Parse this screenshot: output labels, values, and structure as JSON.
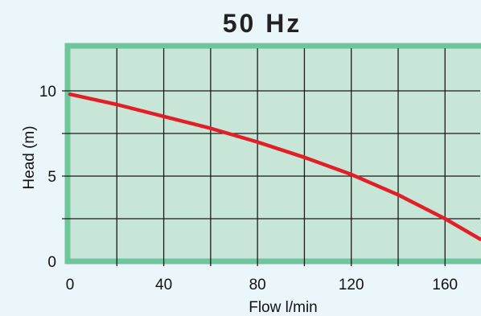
{
  "chart_data": {
    "type": "line",
    "title": "50 Hz",
    "xlabel": "Flow l/min",
    "ylabel": "Head (m)",
    "xlim": [
      0,
      175
    ],
    "ylim": [
      0,
      12.5
    ],
    "x_ticks": [
      0,
      40,
      80,
      120,
      160
    ],
    "x_tick_labels": [
      "0",
      "40",
      "80",
      "120",
      "160"
    ],
    "y_ticks": [
      0,
      5,
      10
    ],
    "y_tick_labels": [
      "0",
      "5",
      "10"
    ],
    "grid": true,
    "grid_x_step": 20,
    "grid_y_step": 2.5,
    "series": [
      {
        "x": [
          0,
          20,
          40,
          60,
          80,
          100,
          120,
          140,
          160,
          175
        ],
        "y": [
          9.8,
          9.2,
          8.5,
          7.8,
          7.0,
          6.1,
          5.1,
          3.9,
          2.5,
          1.3
        ]
      }
    ],
    "colors": {
      "background": "#ebf6fa",
      "plot_fill": "#c8e6d8",
      "frame": "#6fc59c",
      "grid": "#1a1a1a",
      "line": "#e21f26"
    }
  }
}
